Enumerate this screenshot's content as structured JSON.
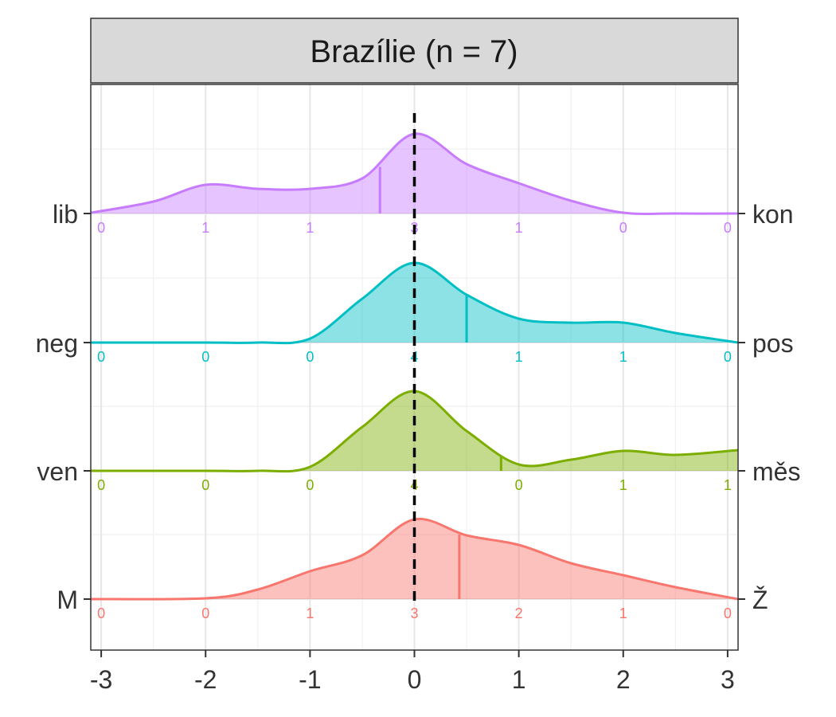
{
  "chart_data": {
    "type": "ridgeline",
    "title": "Brazílie (n = 7)",
    "xlabel": "",
    "ylabel": "",
    "xlim": [
      -3,
      3
    ],
    "x_ticks": [
      "-3",
      "-2",
      "-1",
      "0",
      "1",
      "2",
      "3"
    ],
    "reference_line_x": 0,
    "grid": true,
    "series": [
      {
        "left_label": "lib",
        "right_label": "kon",
        "color": "#C77CFF",
        "mean": -0.33,
        "counts_x": [
          -3,
          -2,
          -1,
          0,
          1,
          2,
          3
        ],
        "counts": [
          "0",
          "1",
          "1",
          "3",
          "1",
          "0",
          "0"
        ],
        "density_x": [
          -3.1,
          -2.5,
          -2.0,
          -1.5,
          -1.0,
          -0.5,
          0.0,
          0.5,
          1.0,
          1.5,
          2.0,
          2.5,
          3.1
        ],
        "density_y": [
          0.01,
          0.15,
          0.36,
          0.31,
          0.31,
          0.44,
          1.0,
          0.62,
          0.38,
          0.16,
          0.01,
          0.0,
          0.0
        ]
      },
      {
        "left_label": "neg",
        "right_label": "pos",
        "color": "#00BFC4",
        "mean": 0.5,
        "counts_x": [
          -3,
          -2,
          -1,
          0,
          1,
          2,
          3
        ],
        "counts": [
          "0",
          "0",
          "0",
          "4",
          "1",
          "1",
          "0"
        ],
        "density_x": [
          -3.1,
          -2.0,
          -1.5,
          -1.0,
          -0.5,
          0.0,
          0.5,
          1.0,
          1.5,
          2.0,
          2.5,
          3.1
        ],
        "density_y": [
          0.0,
          0.0,
          0.0,
          0.05,
          0.55,
          1.0,
          0.6,
          0.3,
          0.25,
          0.25,
          0.12,
          0.0
        ]
      },
      {
        "left_label": "ven",
        "right_label": "měs",
        "color": "#7CAE00",
        "mean": 0.83,
        "counts_x": [
          -3,
          -2,
          -1,
          0,
          1,
          2,
          3
        ],
        "counts": [
          "0",
          "0",
          "0",
          "4",
          "0",
          "1",
          "1"
        ],
        "density_x": [
          -3.1,
          -2.0,
          -1.5,
          -1.0,
          -0.5,
          0.0,
          0.5,
          1.0,
          1.5,
          2.0,
          2.5,
          3.1
        ],
        "density_y": [
          0.0,
          0.0,
          0.0,
          0.05,
          0.55,
          1.0,
          0.5,
          0.08,
          0.14,
          0.25,
          0.2,
          0.26
        ]
      },
      {
        "left_label": "M",
        "right_label": "Ž",
        "color": "#F8766D",
        "mean": 0.43,
        "counts_x": [
          -3,
          -2,
          -1,
          0,
          1,
          2,
          3
        ],
        "counts": [
          "0",
          "0",
          "1",
          "3",
          "2",
          "1",
          "0"
        ],
        "density_x": [
          -3.1,
          -2.0,
          -1.5,
          -1.0,
          -0.5,
          0.0,
          0.5,
          1.0,
          1.5,
          2.0,
          2.5,
          3.1
        ],
        "density_y": [
          0.0,
          0.01,
          0.12,
          0.35,
          0.55,
          1.0,
          0.8,
          0.68,
          0.45,
          0.3,
          0.15,
          0.0
        ]
      }
    ]
  }
}
